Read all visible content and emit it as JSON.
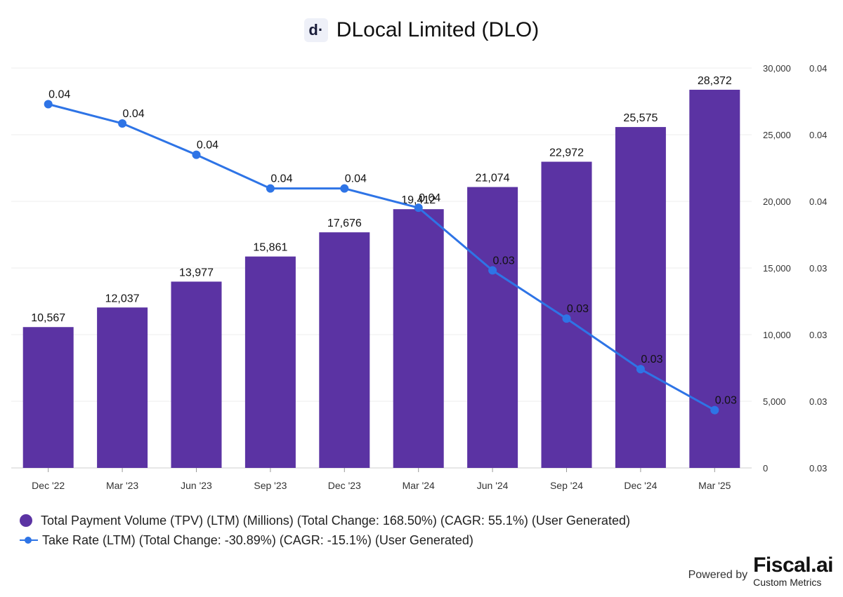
{
  "header": {
    "logo_text": "d·",
    "title": "DLocal Limited (DLO)"
  },
  "legend": {
    "bar_label": "Total Payment Volume (TPV) (LTM) (Millions) (Total Change: 168.50%) (CAGR: 55.1%) (User Generated)",
    "line_label": "Take Rate (LTM) (Total Change: -30.89%) (CAGR: -15.1%) (User Generated)"
  },
  "footer": {
    "powered_by": "Powered by",
    "brand": "Fiscal.ai",
    "brand_sub": "Custom Metrics"
  },
  "colors": {
    "bar": "#5b33a3",
    "line": "#2e74e6",
    "grid": "#ececec"
  },
  "chart_data": {
    "type": "bar",
    "categories": [
      "Dec '22",
      "Mar '23",
      "Jun '23",
      "Sep '23",
      "Dec '23",
      "Mar '24",
      "Jun '24",
      "Sep '24",
      "Dec '24",
      "Mar '25"
    ],
    "series": [
      {
        "name": "Total Payment Volume (TPV) (LTM) (Millions) (Total Change: 168.50%) (CAGR: 55.1%) (User Generated)",
        "type": "bar",
        "axis": "left",
        "values": [
          10567,
          12037,
          13977,
          15861,
          17676,
          19412,
          21074,
          22972,
          25575,
          28372
        ],
        "labels": [
          "10,567",
          "12,037",
          "13,977",
          "15,861",
          "17,676",
          "19,412",
          "21,074",
          "22,972",
          "25,575",
          "28,372"
        ]
      },
      {
        "name": "Take Rate (LTM) (Total Change: -30.89%) (CAGR: -15.1%) (User Generated)",
        "type": "line",
        "axis": "right",
        "values": [
          0.0411,
          0.0403,
          0.039,
          0.0376,
          0.0376,
          0.0368,
          0.0342,
          0.0322,
          0.0301,
          0.0284
        ],
        "labels": [
          "0.04",
          "0.04",
          "0.04",
          "0.04",
          "0.04",
          "0.04",
          "0.03",
          "0.03",
          "0.03",
          "0.03"
        ]
      }
    ],
    "y_left": {
      "min": 0,
      "max": 30000,
      "ticks": [
        0,
        5000,
        10000,
        15000,
        20000,
        25000,
        30000
      ],
      "tick_labels": [
        "0",
        "5,000",
        "10,000",
        "15,000",
        "20,000",
        "25,000",
        "30,000"
      ]
    },
    "y_right": {
      "min": 0.026,
      "max": 0.0426,
      "tick_labels": [
        "0.03",
        "0.03",
        "0.03",
        "0.03",
        "0.04",
        "0.04",
        "0.04"
      ]
    },
    "grid": true,
    "legend_position": "bottom-left"
  }
}
